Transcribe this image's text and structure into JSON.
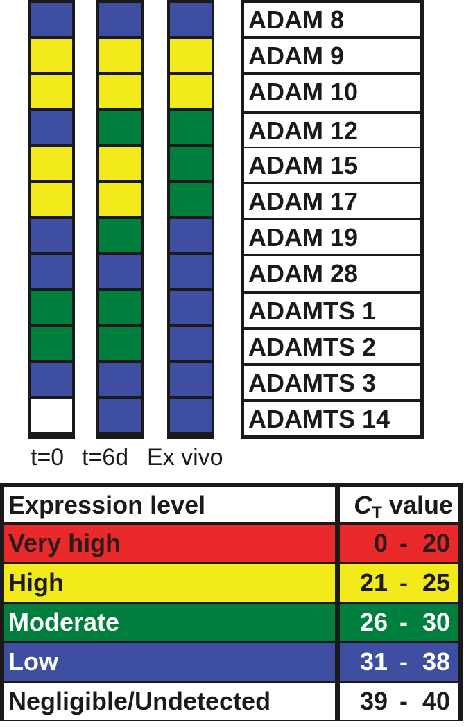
{
  "genes": [
    "ADAM 8",
    "ADAM 9",
    "ADAM 10",
    "ADAM 12",
    "ADAM 15",
    "ADAM 17",
    "ADAM 19",
    "ADAM 28",
    "ADAMTS 1",
    "ADAMTS 2",
    "ADAMTS 3",
    "ADAMTS 14"
  ],
  "columns": [
    {
      "label": "t=0",
      "levels": [
        "low",
        "high",
        "high",
        "low",
        "high",
        "high",
        "low",
        "low",
        "moderate",
        "moderate",
        "low",
        "negligible"
      ]
    },
    {
      "label": "t=6d",
      "levels": [
        "low",
        "high",
        "high",
        "moderate",
        "high",
        "high",
        "moderate",
        "low",
        "moderate",
        "moderate",
        "low",
        "low"
      ]
    },
    {
      "label": "Ex vivo",
      "levels": [
        "low",
        "high",
        "high",
        "moderate",
        "moderate",
        "moderate",
        "low",
        "low",
        "low",
        "low",
        "low",
        "low"
      ]
    }
  ],
  "legend": {
    "header_level": "Expression level",
    "header_ct_symbol": "C",
    "header_ct_sub": "T",
    "header_ct_word": "value",
    "rows": [
      {
        "key": "very_high",
        "label": "Very high",
        "ct_min": "0",
        "ct_sep": "-",
        "ct_max": "20",
        "bg": "#ea2a2a",
        "fg": "#2b1b1b"
      },
      {
        "key": "high",
        "label": "High",
        "ct_min": "21",
        "ct_sep": "-",
        "ct_max": "25",
        "bg": "#f2ea1a",
        "fg": "#1a1a1a"
      },
      {
        "key": "moderate",
        "label": "Moderate",
        "ct_min": "26",
        "ct_sep": "-",
        "ct_max": "30",
        "bg": "#007e3d",
        "fg": "#ffffff"
      },
      {
        "key": "low",
        "label": "Low",
        "ct_min": "31",
        "ct_sep": "-",
        "ct_max": "38",
        "bg": "#3e4fa2",
        "fg": "#ffffff"
      },
      {
        "key": "negligible",
        "label": "Negligible/Undetected",
        "ct_min": "39",
        "ct_sep": "-",
        "ct_max": "40",
        "bg": "#ffffff",
        "fg": "#1a1a1a"
      }
    ]
  },
  "colors": {
    "very_high": "#ea2a2a",
    "high": "#f2ea1a",
    "moderate": "#007e3d",
    "low": "#3e4fa2",
    "negligible": "#ffffff",
    "border": "#1a1a1a"
  }
}
